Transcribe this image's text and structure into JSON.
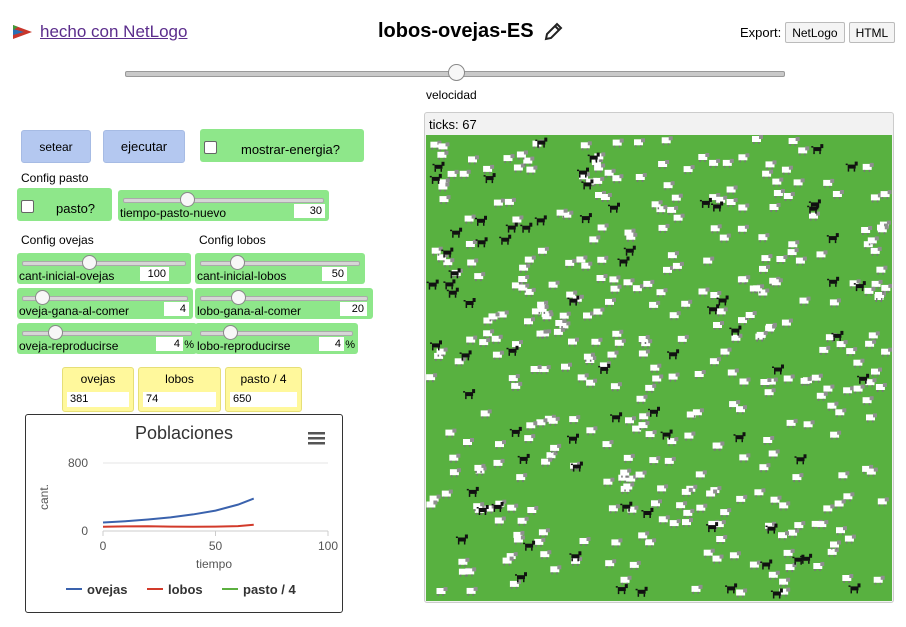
{
  "header": {
    "brand_link": "hecho con NetLogo",
    "title": "lobos-ovejas-ES",
    "export_label": "Export:",
    "export_netlogo": "NetLogo",
    "export_html": "HTML"
  },
  "speed": {
    "label": "velocidad",
    "level": 0.5
  },
  "buttons": {
    "setup": "setear",
    "go": "ejecutar"
  },
  "switches": {
    "show_energy": "mostrar-energia?",
    "grass": "pasto?"
  },
  "sections": {
    "grass": "Config pasto",
    "sheep": "Config ovejas",
    "wolves": "Config lobos"
  },
  "sliders": {
    "grass_regrowth": {
      "label": "tiempo-pasto-nuevo",
      "value": "30",
      "level": 0.3
    },
    "initial_sheep": {
      "label": "cant-inicial-ovejas",
      "value": "100",
      "level": 0.4
    },
    "initial_wolves": {
      "label": "cant-inicial-lobos",
      "value": "50",
      "level": 0.2
    },
    "sheep_gain": {
      "label": "oveja-gana-al-comer",
      "value": "4",
      "level": 0.08
    },
    "wolf_gain": {
      "label": "lobo-gana-al-comer",
      "value": "20",
      "level": 0.2
    },
    "sheep_reproduce": {
      "label": "oveja-reproducirse",
      "value": "4",
      "unit": "%",
      "level": 0.16
    },
    "wolf_reproduce": {
      "label": "lobo-reproducirse",
      "value": "4",
      "unit": "%",
      "level": 0.16
    }
  },
  "monitors": {
    "sheep": {
      "label": "ovejas",
      "value": "381"
    },
    "wolves": {
      "label": "lobos",
      "value": "74"
    },
    "grass": {
      "label": "pasto / 4",
      "value": "650"
    }
  },
  "view": {
    "ticks": "ticks: 67"
  },
  "colors": {
    "sheep": "#3a62ad",
    "wolves": "#d23a2a",
    "grass": "#5cb040",
    "button": "#b4c8f0",
    "widget": "#8ee78a",
    "monitor": "#fff89c",
    "world": "#58b140"
  },
  "chart_data": {
    "type": "line",
    "title": "Poblaciones",
    "xlabel": "tiempo",
    "ylabel": "cant.",
    "xlim": [
      0,
      100
    ],
    "ylim": [
      0,
      800
    ],
    "xticks": [
      "0",
      "50",
      "100"
    ],
    "yticks": [
      "0",
      "800"
    ],
    "grid": false,
    "legend": "bottom",
    "series": [
      {
        "name": "ovejas",
        "color": "#3a62ad",
        "x": [
          0,
          10,
          20,
          30,
          40,
          50,
          55,
          60,
          67
        ],
        "values": [
          100,
          115,
          135,
          160,
          195,
          240,
          275,
          310,
          381
        ]
      },
      {
        "name": "lobos",
        "color": "#d23a2a",
        "x": [
          0,
          10,
          20,
          30,
          40,
          50,
          60,
          67
        ],
        "values": [
          50,
          54,
          56,
          52,
          50,
          52,
          58,
          74
        ]
      },
      {
        "name": "pasto / 4",
        "color": "#5cb040",
        "x": [],
        "values": []
      }
    ]
  }
}
